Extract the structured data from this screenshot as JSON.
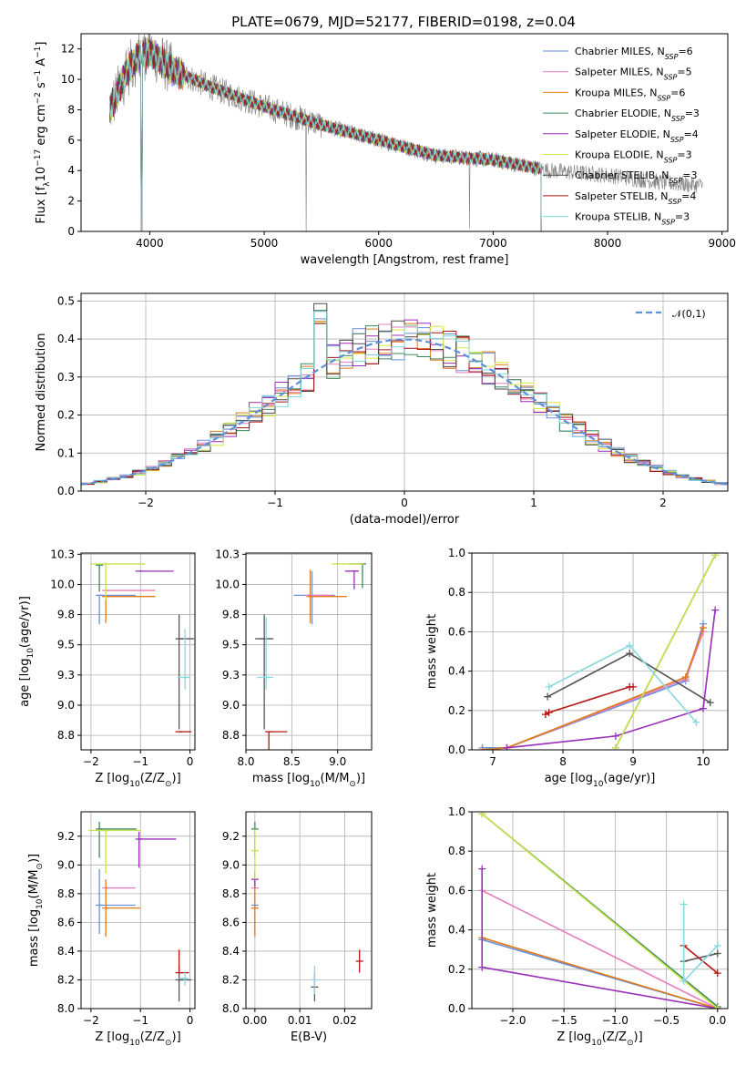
{
  "title": "PLATE=0679, MJD=52177, FIBERID=0198, z=0.04",
  "colors": {
    "data": "#808080",
    "models": [
      "#6a8fdc",
      "#e57fbf",
      "#e07b1a",
      "#3d8a5c",
      "#9a2fb8",
      "#d7e83a",
      "#4a4a4a",
      "#a8141b",
      "#7dd4dc"
    ],
    "ssp": [
      "#6a8fdc",
      "#e57fbf",
      "#e07b1a",
      "#3d8a5c",
      "#9a2fb8",
      "#c9e34a",
      "#555555",
      "#b51515",
      "#88d8e0"
    ],
    "gauss": "#5f8fd9"
  },
  "legend": [
    {
      "pre": "Chabrier MILES, N",
      "sub": "SSP",
      "post": "=6"
    },
    {
      "pre": "Salpeter MILES, N",
      "sub": "SSP",
      "post": "=5"
    },
    {
      "pre": "Kroupa MILES, N",
      "sub": "SSP",
      "post": "=6"
    },
    {
      "pre": "Chabrier ELODIE, N",
      "sub": "SSP",
      "post": "=3"
    },
    {
      "pre": "Salpeter ELODIE, N",
      "sub": "SSP",
      "post": "=4"
    },
    {
      "pre": "Kroupa ELODIE, N",
      "sub": "SSP",
      "post": "=3"
    },
    {
      "pre": "Chabrier STELIB, N",
      "sub": "SSP",
      "post": "=3"
    },
    {
      "pre": "Salpeter STELIB, N",
      "sub": "SSP",
      "post": "=4"
    },
    {
      "pre": "Kroupa STELIB, N",
      "sub": "SSP",
      "post": "=3"
    }
  ],
  "chart_data": [
    {
      "id": "spectrum",
      "type": "line",
      "xlabel": "wavelength [Angstrom, rest frame]",
      "ylabel": {
        "pre": "Flux [f",
        "sub": "λ",
        "mid": "10",
        "sup1": "−17",
        "mid2": " erg cm",
        "sup2": "−2",
        "mid3": " s",
        "sup3": "−1",
        "mid4": " A",
        "sup4": "−1",
        "post": "]"
      },
      "xlim": [
        3400,
        9050
      ],
      "ylim": [
        0,
        13
      ],
      "xticks": [
        4000,
        5000,
        6000,
        7000,
        8000,
        9000
      ],
      "yticks": [
        0,
        2,
        4,
        6,
        8,
        10,
        12
      ],
      "continuum": [
        [
          3650,
          8.0
        ],
        [
          3800,
          10.5
        ],
        [
          3900,
          11.5
        ],
        [
          4000,
          11.8
        ],
        [
          4200,
          10.6
        ],
        [
          4500,
          9.6
        ],
        [
          5000,
          8.2
        ],
        [
          5500,
          7.0
        ],
        [
          6000,
          6.0
        ],
        [
          6500,
          5.0
        ],
        [
          7000,
          4.7
        ],
        [
          7500,
          4.0
        ],
        [
          8000,
          3.7
        ],
        [
          8500,
          3.2
        ],
        [
          8830,
          3.0
        ]
      ],
      "model_end": 7420,
      "data_end": 8830,
      "notes": "Observed spectrum (grey) with nine best-fit model spectra overplotted."
    },
    {
      "id": "residuals",
      "type": "histogram",
      "xlabel": "(data-model)/error",
      "ylabel": "Normed distribution",
      "xlim": [
        -2.5,
        2.5
      ],
      "ylim": [
        0,
        0.52
      ],
      "xticks": [
        -2,
        -1,
        0,
        1,
        2
      ],
      "yticks": [
        0,
        0.1,
        0.2,
        0.3,
        0.4,
        0.5
      ],
      "bin_width": 0.1,
      "gauss_label": "𝒩(0,1)",
      "gauss": {
        "mu": 0,
        "sigma": 1
      }
    },
    {
      "id": "age-vs-Z",
      "type": "errorbar",
      "xlabel": {
        "pre": "Z [log",
        "sub": "10",
        "post": "(Z/Z",
        "sub2": "⊙",
        "end": ")]"
      },
      "ylabel": {
        "pre": "age  [log",
        "sub": "10",
        "post": "(age/yr)]"
      },
      "xlim": [
        -2.2,
        0.1
      ],
      "ylim": [
        8.63,
        10.26
      ],
      "xticks": [
        -2,
        -1,
        0
      ],
      "yticks": [
        8.75,
        9.0,
        9.25,
        9.5,
        9.75,
        10.0,
        10.25
      ],
      "points": [
        {
          "c": 0,
          "x": -1.83,
          "y": 9.91,
          "xe": [
            0,
            0.73
          ],
          "ye": [
            0.24,
            0
          ]
        },
        {
          "c": 1,
          "x": -1.7,
          "y": 9.95,
          "xe": [
            0,
            1.0
          ],
          "ye": [
            0,
            0
          ]
        },
        {
          "c": 2,
          "x": -1.7,
          "y": 9.9,
          "xe": [
            0,
            1.0
          ],
          "ye": [
            0.22,
            0
          ]
        },
        {
          "c": 3,
          "x": -1.83,
          "y": 10.16,
          "xe": [
            0,
            0
          ],
          "ye": [
            0.22,
            0
          ]
        },
        {
          "c": 4,
          "x": -1.03,
          "y": 10.11,
          "xe": [
            0,
            0.7
          ],
          "ye": [
            0,
            0
          ]
        },
        {
          "c": 5,
          "x": -1.7,
          "y": 10.17,
          "xe": [
            0.3,
            0.8
          ],
          "ye": [
            0.3,
            0
          ]
        },
        {
          "c": 6,
          "x": -0.22,
          "y": 9.55,
          "xe": [
            0,
            0.3
          ],
          "ye": [
            0.75,
            0.2
          ]
        },
        {
          "c": 7,
          "x": -0.22,
          "y": 8.78,
          "xe": [
            0,
            0.25
          ],
          "ye": [
            0,
            0
          ]
        },
        {
          "c": 8,
          "x": -0.1,
          "y": 9.23,
          "xe": [
            0.15,
            0.1
          ],
          "ye": [
            0.1,
            0.4
          ]
        }
      ]
    },
    {
      "id": "age-vs-mass",
      "type": "errorbar",
      "xlabel": {
        "pre": "mass [log",
        "sub": "10",
        "post": "(M/M",
        "sub2": "⊙",
        "end": ")]"
      },
      "xlim": [
        8.0,
        9.37
      ],
      "ylim": [
        8.63,
        10.26
      ],
      "xticks": [
        8.0,
        8.5,
        9.0
      ],
      "yticks": [
        8.75,
        9.0,
        9.25,
        9.5,
        9.75,
        10.0,
        10.25
      ],
      "points": [
        {
          "c": 0,
          "x": 8.72,
          "y": 9.91,
          "xe": [
            0.2,
            0.25
          ],
          "ye": [
            0.24,
            0.2
          ]
        },
        {
          "c": 1,
          "x": 8.84,
          "y": 9.91,
          "xe": [
            0.2,
            0.1
          ],
          "ye": [
            0,
            0
          ]
        },
        {
          "c": 2,
          "x": 8.7,
          "y": 9.9,
          "xe": [
            0,
            0.4
          ],
          "ye": [
            0.22,
            0.22
          ]
        },
        {
          "c": 3,
          "x": 9.27,
          "y": 10.17,
          "xe": [
            0.15,
            0
          ],
          "ye": [
            0.2,
            0
          ]
        },
        {
          "c": 4,
          "x": 9.18,
          "y": 10.11,
          "xe": [
            0.1,
            0.05
          ],
          "ye": [
            0.15,
            0
          ]
        },
        {
          "c": 5,
          "x": 9.24,
          "y": 10.17,
          "xe": [
            0.3,
            0
          ],
          "ye": [
            0,
            0
          ]
        },
        {
          "c": 6,
          "x": 8.2,
          "y": 9.55,
          "xe": [
            0.1,
            0.1
          ],
          "ye": [
            0.75,
            0.2
          ]
        },
        {
          "c": 7,
          "x": 8.25,
          "y": 8.78,
          "xe": [
            0,
            0.2
          ],
          "ye": [
            0.94,
            0
          ]
        },
        {
          "c": 8,
          "x": 8.22,
          "y": 9.23,
          "xe": [
            0.1,
            0.08
          ],
          "ye": [
            0.1,
            0.5
          ]
        }
      ]
    },
    {
      "id": "weight-vs-age",
      "type": "line",
      "xlabel": {
        "pre": "age  [log",
        "sub": "10",
        "post": "(age/yr)]"
      },
      "ylabel": "mass weight",
      "xlim": [
        6.7,
        10.35
      ],
      "ylim": [
        0,
        1.0
      ],
      "xticks": [
        7,
        8,
        9,
        10
      ],
      "yticks": [
        0.0,
        0.2,
        0.4,
        0.6,
        0.8,
        1.0
      ],
      "series": [
        {
          "c": 0,
          "pts": [
            [
              6.85,
              0.01
            ],
            [
              7.2,
              0.01
            ],
            [
              9.75,
              0.35
            ],
            [
              10.0,
              0.64
            ]
          ]
        },
        {
          "c": 1,
          "pts": [
            [
              6.85,
              0.0
            ],
            [
              7.2,
              0.01
            ],
            [
              9.75,
              0.36
            ],
            [
              10.0,
              0.6
            ]
          ]
        },
        {
          "c": 2,
          "pts": [
            [
              6.85,
              0.0
            ],
            [
              7.2,
              0.01
            ],
            [
              9.75,
              0.37
            ],
            [
              10.0,
              0.62
            ]
          ]
        },
        {
          "c": 3,
          "pts": [
            [
              8.75,
              0.01
            ],
            [
              10.17,
              0.99
            ]
          ]
        },
        {
          "c": 4,
          "pts": [
            [
              7.2,
              0.01
            ],
            [
              8.75,
              0.07
            ],
            [
              10.0,
              0.21
            ],
            [
              10.17,
              0.71
            ]
          ]
        },
        {
          "c": 5,
          "pts": [
            [
              8.75,
              0.01
            ],
            [
              10.17,
              0.99
            ]
          ]
        },
        {
          "c": 6,
          "pts": [
            [
              7.78,
              0.27
            ],
            [
              8.95,
              0.49
            ],
            [
              10.1,
              0.24
            ]
          ]
        },
        {
          "c": 7,
          "pts": [
            [
              7.75,
              0.18
            ],
            [
              7.8,
              0.19
            ],
            [
              8.95,
              0.32
            ],
            [
              9.0,
              0.32
            ]
          ]
        },
        {
          "c": 8,
          "pts": [
            [
              7.8,
              0.32
            ],
            [
              8.95,
              0.53
            ],
            [
              9.9,
              0.14
            ]
          ]
        }
      ]
    },
    {
      "id": "mass-vs-Z",
      "type": "errorbar",
      "xlabel": {
        "pre": "Z [log",
        "sub": "10",
        "post": "(Z/Z",
        "sub2": "⊙",
        "end": ")]"
      },
      "ylabel": {
        "pre": "mass [log",
        "sub": "10",
        "post": "(M/M",
        "sub2": "⊙",
        "end": ")]"
      },
      "xlim": [
        -2.2,
        0.1
      ],
      "ylim": [
        8.0,
        9.37
      ],
      "xticks": [
        -2,
        -1,
        0
      ],
      "yticks": [
        8.0,
        8.2,
        8.4,
        8.6,
        8.8,
        9.0,
        9.2
      ],
      "points": [
        {
          "c": 0,
          "x": -1.83,
          "y": 8.72,
          "xe": [
            0,
            0.73
          ],
          "ye": [
            0.2,
            0.25
          ]
        },
        {
          "c": 1,
          "x": -1.7,
          "y": 8.84,
          "xe": [
            0,
            0.6
          ],
          "ye": [
            0,
            0
          ]
        },
        {
          "c": 2,
          "x": -1.7,
          "y": 8.7,
          "xe": [
            0,
            0.7
          ],
          "ye": [
            0.2,
            0.2
          ]
        },
        {
          "c": 3,
          "x": -1.83,
          "y": 9.25,
          "xe": [
            0,
            0.75
          ],
          "ye": [
            0.2,
            0.05
          ]
        },
        {
          "c": 4,
          "x": -1.03,
          "y": 9.18,
          "xe": [
            0,
            0.75
          ],
          "ye": [
            0.2,
            0.05
          ]
        },
        {
          "c": 5,
          "x": -1.7,
          "y": 9.24,
          "xe": [
            0.35,
            0.7
          ],
          "ye": [
            0.3,
            0
          ]
        },
        {
          "c": 6,
          "x": -0.22,
          "y": 8.2,
          "xe": [
            0,
            0.25
          ],
          "ye": [
            0.15,
            0.1
          ]
        },
        {
          "c": 7,
          "x": -0.22,
          "y": 8.25,
          "xe": [
            0,
            0.2
          ],
          "ye": [
            0,
            0.16
          ]
        },
        {
          "c": 8,
          "x": -0.1,
          "y": 8.21,
          "xe": [
            0.12,
            0.05
          ],
          "ye": [
            0.05,
            0.05
          ]
        }
      ]
    },
    {
      "id": "mass-vs-EBV",
      "type": "errorbar",
      "xlabel": "E(B-V)",
      "xlim": [
        -0.002,
        0.026
      ],
      "ylim": [
        8.0,
        9.37
      ],
      "xticks": [
        0.0,
        0.01,
        0.02
      ],
      "yticks": [
        8.0,
        8.2,
        8.4,
        8.6,
        8.8,
        9.0,
        9.2
      ],
      "points": [
        {
          "c": 0,
          "x": 0.0,
          "y": 8.72,
          "xe": [
            0,
            0
          ],
          "ye": [
            0.2,
            0.25
          ]
        },
        {
          "c": 1,
          "x": 0.0,
          "y": 8.84,
          "xe": [
            0,
            0
          ],
          "ye": [
            0.05,
            0.05
          ]
        },
        {
          "c": 2,
          "x": 0.0,
          "y": 8.7,
          "xe": [
            0,
            0
          ],
          "ye": [
            0.2,
            0.2
          ]
        },
        {
          "c": 3,
          "x": 0.0,
          "y": 9.25,
          "xe": [
            0,
            0
          ],
          "ye": [
            0.2,
            0.05
          ]
        },
        {
          "c": 4,
          "x": 0.0,
          "y": 8.9,
          "xe": [
            0,
            0
          ],
          "ye": [
            0.05,
            0.05
          ]
        },
        {
          "c": 5,
          "x": 0.0,
          "y": 9.1,
          "xe": [
            0,
            0
          ],
          "ye": [
            0.2,
            0.15
          ]
        },
        {
          "c": 6,
          "x": 0.0133,
          "y": 8.15,
          "xe": [
            0,
            0
          ],
          "ye": [
            0.1,
            0.1
          ]
        },
        {
          "c": 7,
          "x": 0.0233,
          "y": 8.33,
          "xe": [
            0,
            0
          ],
          "ye": [
            0.08,
            0.08
          ]
        },
        {
          "c": 8,
          "x": 0.0133,
          "y": 8.2,
          "xe": [
            0,
            0
          ],
          "ye": [
            0.1,
            0.1
          ]
        }
      ]
    },
    {
      "id": "weight-vs-Z",
      "type": "line",
      "xlabel": {
        "pre": "Z [log",
        "sub": "10",
        "post": "(Z/Z",
        "sub2": "⊙",
        "end": ")]"
      },
      "ylabel": "mass weight",
      "xlim": [
        -2.4,
        0.1
      ],
      "ylim": [
        0,
        1.0
      ],
      "xticks": [
        -2.0,
        -1.5,
        -1.0,
        -0.5,
        0.0
      ],
      "yticks": [
        0.0,
        0.2,
        0.4,
        0.6,
        0.8,
        1.0
      ],
      "series": [
        {
          "c": 0,
          "pts": [
            [
              -2.3,
              0.35
            ],
            [
              0.0,
              0.0
            ]
          ]
        },
        {
          "c": 1,
          "pts": [
            [
              -2.3,
              0.6
            ],
            [
              0.0,
              0.0
            ]
          ]
        },
        {
          "c": 2,
          "pts": [
            [
              -2.3,
              0.36
            ],
            [
              0.0,
              0.0
            ]
          ]
        },
        {
          "c": 3,
          "pts": [
            [
              -2.3,
              0.99
            ],
            [
              0.0,
              0.01
            ]
          ]
        },
        {
          "c": 4,
          "pts": [
            [
              -2.3,
              0.71
            ],
            [
              -2.3,
              0.21
            ],
            [
              0.0,
              0.0
            ]
          ]
        },
        {
          "c": 5,
          "pts": [
            [
              -2.3,
              0.99
            ],
            [
              0.0,
              0.0
            ]
          ]
        },
        {
          "c": 6,
          "pts": [
            [
              -0.33,
              0.24
            ],
            [
              0.0,
              0.28
            ]
          ]
        },
        {
          "c": 7,
          "pts": [
            [
              -0.33,
              0.32
            ],
            [
              0.0,
              0.18
            ]
          ]
        },
        {
          "c": 8,
          "pts": [
            [
              -0.33,
              0.53
            ],
            [
              -0.33,
              0.14
            ],
            [
              0.0,
              0.32
            ]
          ]
        }
      ]
    }
  ]
}
